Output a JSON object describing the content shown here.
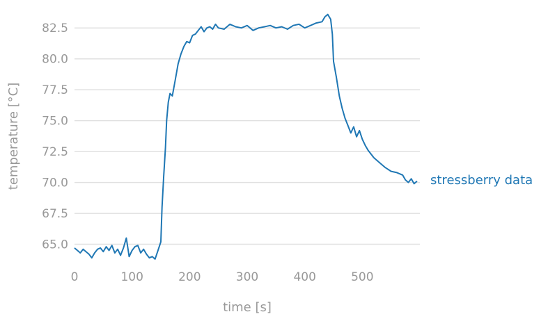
{
  "chart_data": {
    "type": "line",
    "title": "",
    "xlabel": "time [s]",
    "ylabel": "temperature [°C]",
    "xlim": [
      0,
      600
    ],
    "ylim": [
      63.4,
      84.2
    ],
    "x_ticks": [
      "0",
      "100",
      "200",
      "300",
      "400",
      "500"
    ],
    "y_ticks": [
      "65.0",
      "67.5",
      "70.0",
      "72.5",
      "75.0",
      "77.5",
      "80.0",
      "82.5"
    ],
    "grid": "horizontal",
    "legend": "none",
    "series_color": "#1f77b4",
    "series": [
      {
        "name": "stressberry data",
        "x": [
          0,
          5,
          10,
          15,
          20,
          25,
          30,
          35,
          40,
          45,
          50,
          55,
          60,
          65,
          70,
          75,
          80,
          85,
          90,
          95,
          100,
          105,
          110,
          115,
          120,
          125,
          130,
          135,
          140,
          145,
          150,
          152,
          155,
          158,
          160,
          163,
          166,
          170,
          175,
          180,
          185,
          190,
          195,
          200,
          205,
          210,
          215,
          220,
          225,
          230,
          235,
          240,
          245,
          250,
          260,
          270,
          280,
          290,
          300,
          310,
          320,
          330,
          340,
          350,
          360,
          370,
          380,
          390,
          400,
          410,
          420,
          430,
          435,
          440,
          445,
          448,
          450,
          455,
          460,
          465,
          470,
          475,
          480,
          485,
          490,
          495,
          500,
          505,
          510,
          520,
          530,
          540,
          550,
          560,
          570,
          575,
          580,
          585,
          590,
          595
        ],
        "values": [
          64.7,
          64.5,
          64.3,
          64.6,
          64.4,
          64.2,
          63.9,
          64.3,
          64.6,
          64.7,
          64.4,
          64.8,
          64.5,
          64.9,
          64.3,
          64.6,
          64.1,
          64.7,
          65.5,
          64.0,
          64.5,
          64.8,
          64.9,
          64.3,
          64.6,
          64.2,
          63.9,
          64.0,
          63.8,
          64.5,
          65.2,
          68.0,
          70.5,
          72.8,
          75.0,
          76.5,
          77.2,
          77.0,
          78.3,
          79.6,
          80.4,
          81.0,
          81.4,
          81.3,
          81.9,
          82.0,
          82.3,
          82.6,
          82.2,
          82.5,
          82.6,
          82.4,
          82.8,
          82.5,
          82.4,
          82.8,
          82.6,
          82.5,
          82.7,
          82.3,
          82.5,
          82.6,
          82.7,
          82.5,
          82.6,
          82.4,
          82.7,
          82.8,
          82.5,
          82.7,
          82.9,
          83.0,
          83.4,
          83.6,
          83.2,
          82.0,
          79.8,
          78.5,
          77.0,
          76.0,
          75.2,
          74.6,
          74.0,
          74.5,
          73.7,
          74.2,
          73.5,
          73.0,
          72.6,
          72.0,
          71.6,
          71.2,
          70.9,
          70.8,
          70.6,
          70.2,
          70.0,
          70.3,
          69.9,
          70.1
        ]
      }
    ]
  }
}
